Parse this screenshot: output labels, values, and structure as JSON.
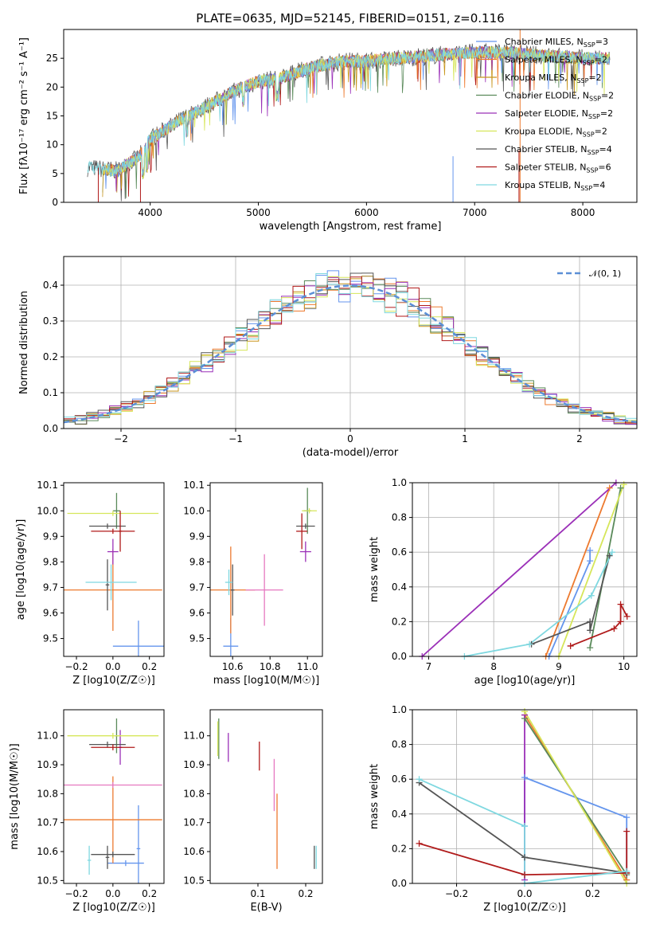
{
  "palette": {
    "chabrier_miles": "#6495ed",
    "salpeter_miles": "#ed7a2f",
    "kroupa_miles": "#c8961e",
    "chabrier_elodie": "#5a8a5a",
    "salpeter_elodie": "#9b30b8",
    "kroupa_elodie": "#d6e65a",
    "chabrier_stelib": "#555555",
    "salpeter_stelib": "#b01a1a",
    "kroupa_stelib": "#7fd8e0",
    "pink": "#e678c0",
    "gaussian": "#5b8fd6"
  },
  "chart_data": [
    {
      "type": "line",
      "title": "PLATE=0635, MJD=52145, FIBERID=0151, z=0.116",
      "xlabel": "wavelength [Angstrom, rest frame]",
      "ylabel": "Flux [fλ10⁻¹⁷ erg cm⁻² s⁻¹ A⁻¹]",
      "xlim": [
        3200,
        8500
      ],
      "ylim": [
        0,
        30
      ],
      "xticks": [
        "4000",
        "5000",
        "6000",
        "7000",
        "8000"
      ],
      "yticks": [
        "0",
        "5",
        "10",
        "15",
        "20",
        "25"
      ],
      "spectrum_x": [
        3450,
        3700,
        3900,
        4000,
        4300,
        4500,
        4800,
        5000,
        5200,
        5500,
        5800,
        6000,
        6300,
        6600,
        7000,
        7300,
        7600,
        8000,
        8250
      ],
      "spectrum_y": [
        6,
        5.5,
        8,
        11,
        14.5,
        16.5,
        19.5,
        21,
        21.5,
        23.5,
        24.5,
        24.5,
        25,
        25.5,
        26,
        26,
        25.5,
        25,
        25
      ],
      "legend": [
        {
          "label": "Chabrier MILES, N",
          "sub": "SSP",
          "n": "=3",
          "color": "#6495ed"
        },
        {
          "label": "Salpeter MILES, N",
          "sub": "SSP",
          "n": "=2",
          "color": "#ed7a2f"
        },
        {
          "label": "Kroupa MILES, N",
          "sub": "SSP",
          "n": "=2",
          "color": "#c8961e"
        },
        {
          "label": "Chabrier ELODIE, N",
          "sub": "SSP",
          "n": "=2",
          "color": "#5a8a5a"
        },
        {
          "label": "Salpeter ELODIE, N",
          "sub": "SSP",
          "n": "=2",
          "color": "#9b30b8"
        },
        {
          "label": "Kroupa ELODIE, N",
          "sub": "SSP",
          "n": "=2",
          "color": "#d6e65a"
        },
        {
          "label": "Chabrier STELIB, N",
          "sub": "SSP",
          "n": "=4",
          "color": "#555555"
        },
        {
          "label": "Salpeter STELIB, N",
          "sub": "SSP",
          "n": "=6",
          "color": "#b01a1a"
        },
        {
          "label": "Kroupa STELIB, N",
          "sub": "SSP",
          "n": "=4",
          "color": "#7fd8e0"
        }
      ]
    },
    {
      "type": "histogram",
      "xlabel": "(data-model)/error",
      "ylabel": "Normed distribution",
      "xlim": [
        -2.5,
        2.5
      ],
      "ylim": [
        0,
        0.48
      ],
      "xticks": [
        "−2",
        "−1",
        "0",
        "1",
        "2"
      ],
      "yticks": [
        "0.0",
        "0.1",
        "0.2",
        "0.3",
        "0.4"
      ],
      "grid": true,
      "legend": "𝒩(0, 1)",
      "legend_position": "top-right",
      "bin_width": 0.1
    },
    {
      "type": "scatter",
      "xlabel": "Z [log10(Z/Z☉)]",
      "ylabel": "age  [log10(age/yr)]",
      "xlim": [
        -0.27,
        0.28
      ],
      "ylim": [
        9.43,
        10.11
      ],
      "xticks": [
        "−0.2",
        "0.0",
        "0.2"
      ],
      "yticks": [
        "9.5",
        "9.6",
        "9.7",
        "9.8",
        "9.9",
        "10.0",
        "10.1"
      ],
      "points": [
        {
          "x": 0.14,
          "y": 9.47,
          "xerr": 0.14,
          "yerr": 0.1,
          "color": "#6495ed"
        },
        {
          "x": 0.0,
          "y": 9.69,
          "xerr": 0.27,
          "yerr": 0.16,
          "color": "#ed7a2f"
        },
        {
          "x": 0.02,
          "y": 10.0,
          "xerr": 0.02,
          "yerr": 0.07,
          "color": "#5a8a5a"
        },
        {
          "x": 0.0,
          "y": 9.84,
          "xerr": 0.03,
          "yerr": 0.05,
          "color": "#9b30b8"
        },
        {
          "x": 0.0,
          "y": 9.99,
          "xerr": 0.25,
          "yerr": 0.01,
          "color": "#d6e65a"
        },
        {
          "x": -0.03,
          "y": 9.94,
          "xerr": 0.1,
          "yerr": 0.01,
          "color": "#555555"
        },
        {
          "x": -0.03,
          "y": 9.71,
          "xerr": 0.01,
          "yerr": 0.1,
          "color": "#555555"
        },
        {
          "x": 0.0,
          "y": 9.92,
          "xerr": 0.12,
          "yerr": 0.01,
          "color": "#b01a1a"
        },
        {
          "x": 0.04,
          "y": 9.92,
          "xerr": 0.01,
          "yerr": 0.08,
          "color": "#b01a1a"
        },
        {
          "x": -0.01,
          "y": 9.72,
          "xerr": 0.14,
          "yerr": 0.07,
          "color": "#7fd8e0"
        }
      ]
    },
    {
      "type": "scatter",
      "xlabel": "mass [log10(M/M☉)]",
      "xlim": [
        10.48,
        11.08
      ],
      "ylim": [
        9.43,
        10.11
      ],
      "xticks": [
        "10.6",
        "10.8",
        "11.0"
      ],
      "yticks": [
        "9.5",
        "9.6",
        "9.7",
        "9.8",
        "9.9",
        "10.0",
        "10.1"
      ],
      "points": [
        {
          "x": 10.59,
          "y": 9.47,
          "xerr": 0.04,
          "yerr": 0.11,
          "color": "#6495ed"
        },
        {
          "x": 10.59,
          "y": 9.69,
          "xerr": 0.13,
          "yerr": 0.17,
          "color": "#ed7a2f"
        },
        {
          "x": 10.77,
          "y": 9.69,
          "xerr": 0.1,
          "yerr": 0.14,
          "color": "#e678c0"
        },
        {
          "x": 11.0,
          "y": 10.0,
          "xerr": 0.02,
          "yerr": 0.09,
          "color": "#5a8a5a"
        },
        {
          "x": 10.99,
          "y": 9.84,
          "xerr": 0.03,
          "yerr": 0.04,
          "color": "#9b30b8"
        },
        {
          "x": 11.01,
          "y": 10.0,
          "xerr": 0.04,
          "yerr": 0.01,
          "color": "#d6e65a"
        },
        {
          "x": 10.99,
          "y": 9.94,
          "xerr": 0.05,
          "yerr": 0.01,
          "color": "#555555"
        },
        {
          "x": 10.6,
          "y": 9.69,
          "xerr": 0.01,
          "yerr": 0.1,
          "color": "#555555"
        },
        {
          "x": 10.97,
          "y": 9.92,
          "xerr": 0.03,
          "yerr": 0.07,
          "color": "#b01a1a"
        },
        {
          "x": 10.58,
          "y": 9.72,
          "xerr": 0.02,
          "yerr": 0.05,
          "color": "#7fd8e0"
        }
      ]
    },
    {
      "type": "line",
      "xlabel": "age  [log10(age/yr)]",
      "ylabel": "mass weight",
      "xlim": [
        6.75,
        10.2
      ],
      "ylim": [
        0,
        1
      ],
      "xticks": [
        "7",
        "8",
        "9",
        "10"
      ],
      "yticks": [
        "0.0",
        "0.2",
        "0.4",
        "0.6",
        "0.8",
        "1.0"
      ],
      "grid": true,
      "series": [
        {
          "color": "#6495ed",
          "x": [
            8.85,
            9.48,
            9.48
          ],
          "y": [
            0.0,
            0.55,
            0.61
          ]
        },
        {
          "color": "#ed7a2f",
          "x": [
            8.8,
            9.78
          ],
          "y": [
            0.0,
            0.97
          ]
        },
        {
          "color": "#5a8a5a",
          "x": [
            9.48,
            9.95
          ],
          "y": [
            0.05,
            0.97
          ]
        },
        {
          "color": "#9b30b8",
          "x": [
            6.9,
            9.88
          ],
          "y": [
            0.0,
            1.0
          ]
        },
        {
          "color": "#d6e65a",
          "x": [
            9.0,
            10.0
          ],
          "y": [
            0.0,
            0.99
          ]
        },
        {
          "color": "#555555",
          "x": [
            8.58,
            9.48,
            9.48,
            9.78
          ],
          "y": [
            0.07,
            0.2,
            0.15,
            0.58
          ]
        },
        {
          "color": "#b01a1a",
          "x": [
            9.18,
            9.85,
            9.95,
            9.95,
            10.05
          ],
          "y": [
            0.06,
            0.16,
            0.2,
            0.3,
            0.23
          ]
        },
        {
          "color": "#7fd8e0",
          "x": [
            7.55,
            8.55,
            9.5,
            9.82
          ],
          "y": [
            0.0,
            0.07,
            0.35,
            0.6
          ]
        }
      ]
    },
    {
      "type": "scatter",
      "xlabel": "Z [log10(Z/Z☉)]",
      "ylabel": "mass [log10(M/M☉)]",
      "xlim": [
        -0.27,
        0.28
      ],
      "ylim": [
        10.49,
        11.09
      ],
      "xticks": [
        "−0.2",
        "0.0",
        "0.2"
      ],
      "yticks": [
        "10.5",
        "10.6",
        "10.7",
        "10.8",
        "10.9",
        "11.0"
      ],
      "points": [
        {
          "x": 0.07,
          "y": 10.56,
          "xerr": 0.1,
          "yerr": 0.01,
          "color": "#6495ed"
        },
        {
          "x": 0.14,
          "y": 10.61,
          "xerr": 0.01,
          "yerr": 0.15,
          "color": "#6495ed"
        },
        {
          "x": 0.0,
          "y": 10.71,
          "xerr": 0.27,
          "yerr": 0.15,
          "color": "#ed7a2f"
        },
        {
          "x": 0.0,
          "y": 10.83,
          "xerr": 0.27,
          "yerr": 0.01,
          "color": "#e678c0"
        },
        {
          "x": 0.02,
          "y": 11.0,
          "xerr": 0.01,
          "yerr": 0.06,
          "color": "#5a8a5a"
        },
        {
          "x": 0.04,
          "y": 10.96,
          "xerr": 0.01,
          "yerr": 0.06,
          "color": "#9b30b8"
        },
        {
          "x": 0.0,
          "y": 11.0,
          "xerr": 0.25,
          "yerr": 0.01,
          "color": "#d6e65a"
        },
        {
          "x": -0.03,
          "y": 10.97,
          "xerr": 0.1,
          "yerr": 0.01,
          "color": "#555555"
        },
        {
          "x": -0.03,
          "y": 10.58,
          "xerr": 0.01,
          "yerr": 0.04,
          "color": "#555555"
        },
        {
          "x": 0.0,
          "y": 10.59,
          "xerr": 0.12,
          "yerr": 0.01,
          "color": "#555555"
        },
        {
          "x": 0.0,
          "y": 10.96,
          "xerr": 0.12,
          "yerr": 0.01,
          "color": "#b01a1a"
        },
        {
          "x": -0.13,
          "y": 10.57,
          "xerr": 0.01,
          "yerr": 0.05,
          "color": "#7fd8e0"
        }
      ]
    },
    {
      "type": "scatter",
      "xlabel": "E(B-V)",
      "xlim": [
        0.0,
        0.235
      ],
      "ylim": [
        10.49,
        11.09
      ],
      "xticks": [
        "0.1",
        "0.2"
      ],
      "yticks": [
        "10.5",
        "10.6",
        "10.7",
        "10.8",
        "10.9",
        "11.0"
      ],
      "points": [
        {
          "x": 0.018,
          "y": 10.99,
          "yerr": 0.07,
          "color": "#5a8a5a"
        },
        {
          "x": 0.016,
          "y": 10.99,
          "yerr": 0.06,
          "color": "#d6e65a"
        },
        {
          "x": 0.038,
          "y": 10.96,
          "yerr": 0.05,
          "color": "#9b30b8"
        },
        {
          "x": 0.103,
          "y": 10.93,
          "yerr": 0.05,
          "color": "#b01a1a"
        },
        {
          "x": 0.134,
          "y": 10.83,
          "yerr": 0.09,
          "color": "#e678c0"
        },
        {
          "x": 0.14,
          "y": 10.67,
          "yerr": 0.13,
          "color": "#ed7a2f"
        },
        {
          "x": 0.218,
          "y": 10.58,
          "yerr": 0.04,
          "color": "#555555"
        },
        {
          "x": 0.222,
          "y": 10.58,
          "yerr": 0.04,
          "color": "#7fd8e0"
        }
      ]
    },
    {
      "type": "line",
      "xlabel": "Z [log10(Z/Z☉)]",
      "ylabel": "mass weight",
      "xlim": [
        -0.33,
        0.33
      ],
      "ylim": [
        0,
        1
      ],
      "xticks": [
        "−0.2",
        "0.0",
        "0.2"
      ],
      "yticks": [
        "0.0",
        "0.2",
        "0.4",
        "0.6",
        "0.8",
        "1.0"
      ],
      "grid": true,
      "series": [
        {
          "color": "#6495ed",
          "x": [
            0.0,
            0.0,
            0.3,
            0.3
          ],
          "y": [
            0.33,
            0.61,
            0.38,
            0.02
          ]
        },
        {
          "color": "#ed7a2f",
          "x": [
            0.0,
            0.3
          ],
          "y": [
            0.97,
            0.02
          ]
        },
        {
          "color": "#5a8a5a",
          "x": [
            0.0,
            0.3
          ],
          "y": [
            0.95,
            0.05
          ]
        },
        {
          "color": "#9b30b8",
          "x": [
            0.0,
            0.0
          ],
          "y": [
            0.02,
            0.97
          ]
        },
        {
          "color": "#d6e65a",
          "x": [
            0.0,
            0.3
          ],
          "y": [
            0.99,
            0.0
          ]
        },
        {
          "color": "#555555",
          "x": [
            -0.31,
            0.0,
            0.3
          ],
          "y": [
            0.58,
            0.15,
            0.06
          ]
        },
        {
          "color": "#b01a1a",
          "x": [
            -0.31,
            0.0,
            0.3,
            0.3
          ],
          "y": [
            0.23,
            0.05,
            0.06,
            0.3
          ]
        },
        {
          "color": "#7fd8e0",
          "x": [
            -0.31,
            0.0,
            0.0,
            0.3
          ],
          "y": [
            0.6,
            0.33,
            0.0,
            0.07
          ]
        }
      ]
    }
  ]
}
